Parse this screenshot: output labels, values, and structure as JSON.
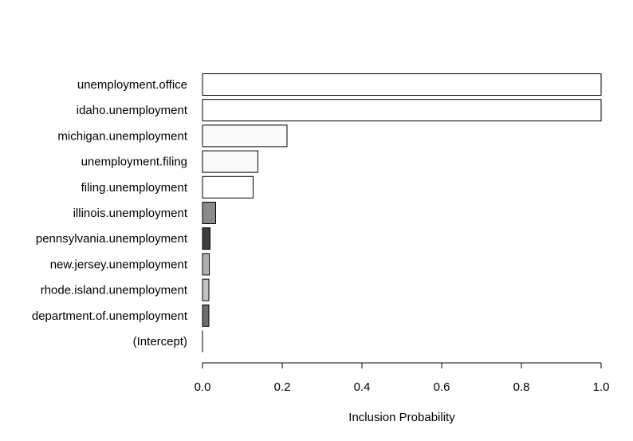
{
  "chart_data": {
    "type": "bar",
    "orientation": "horizontal",
    "title": "",
    "xlabel": "Inclusion Probability",
    "ylabel": "",
    "xlim": [
      0,
      1
    ],
    "xticks": [
      "0.0",
      "0.2",
      "0.4",
      "0.6",
      "0.8",
      "1.0"
    ],
    "xtick_values": [
      0,
      0.2,
      0.4,
      0.6,
      0.8,
      1.0
    ],
    "grid": false,
    "legend": "none",
    "categories": [
      "unemployment.office",
      "idaho.unemployment",
      "michigan.unemployment",
      "unemployment.filing",
      "filing.unemployment",
      "illinois.unemployment",
      "pennsylvania.unemployment",
      "new.jersey.unemployment",
      "rhode.island.unemployment",
      "department.of.unemployment",
      "(Intercept)"
    ],
    "values": [
      1.0,
      1.0,
      0.212,
      0.139,
      0.127,
      0.033,
      0.019,
      0.017,
      0.016,
      0.016,
      0.0
    ],
    "colors": [
      "#ffffff",
      "#ffffff",
      "#fafafa",
      "#fafafa",
      "#ffffff",
      "#8a8a8a",
      "#3e3e3e",
      "#b0b0b0",
      "#c4c4c4",
      "#6e6e6e",
      "#ffffff"
    ]
  }
}
